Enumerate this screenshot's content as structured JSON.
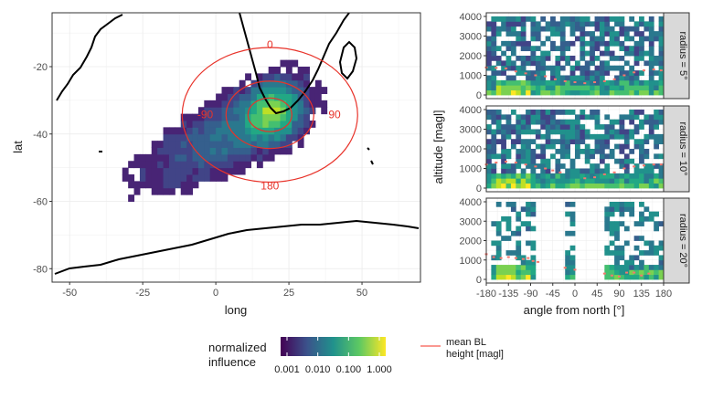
{
  "chart_data": [
    {
      "type": "heatmap",
      "panel": "map",
      "xlabel": "long",
      "ylabel": "lat",
      "xlim": [
        -56,
        70
      ],
      "ylim": [
        -84,
        -4
      ],
      "xticks": [
        -50,
        -25,
        0,
        25,
        50
      ],
      "xtick_labels": [
        "-50",
        "-25",
        "0",
        "25",
        "50"
      ],
      "yticks": [
        -20,
        -40,
        -60,
        -80
      ],
      "ytick_labels": [
        "-20",
        "-40",
        "-60",
        "-80"
      ],
      "grid": true,
      "station": {
        "lon": 18.5,
        "lat": -34.3
      },
      "rings": [
        {
          "radius_deg": 5
        },
        {
          "radius_deg": 10
        },
        {
          "radius_deg": 20
        }
      ],
      "ring_labels": [
        {
          "text": "0",
          "lon": 18.5,
          "lat": -14.3
        },
        {
          "text": "90",
          "lon": 37.5,
          "lat": -34.3
        },
        {
          "text": "180",
          "lon": 18.5,
          "lat": -54.3
        },
        {
          "text": "-90",
          "lon": -0.5,
          "lat": -34.3
        }
      ],
      "ring_color": "#e8332a",
      "plume": {
        "description_values": "normalized influence, log scale 0.001 to 1, peak near station",
        "peak": 1.0,
        "min": 0.001
      }
    },
    {
      "type": "heatmap",
      "panel": "facets",
      "xlabel": "angle from north [°]",
      "ylabel": "altitude [magl]",
      "xlim": [
        -180,
        180
      ],
      "ylim": [
        0,
        4000
      ],
      "xticks": [
        -180,
        -135,
        -90,
        -45,
        0,
        45,
        90,
        135,
        180
      ],
      "xtick_labels": [
        "-180",
        "-135",
        "-90",
        "-45",
        "0",
        "45",
        "90",
        "135",
        "180"
      ],
      "yticks": [
        0,
        1000,
        2000,
        3000,
        4000
      ],
      "ytick_labels": [
        "0",
        "1000",
        "2000",
        "3000",
        "4000"
      ],
      "facets": [
        {
          "label": "radius = 5°",
          "coverage": [
            [
              -180,
              180
            ]
          ],
          "bl_height": {
            "x": [
              -180,
              -160,
              -140,
              -120,
              -100,
              -80,
              -60,
              -40,
              -20,
              0,
              20,
              40,
              60,
              80,
              100,
              120,
              140,
              160,
              175
            ],
            "y": [
              1400,
              1380,
              1350,
              1200,
              1100,
              1000,
              950,
              800,
              700,
              650,
              600,
              650,
              700,
              800,
              1000,
              1150,
              1250,
              1300,
              1250
            ]
          }
        },
        {
          "label": "radius = 10°",
          "coverage": [
            [
              -180,
              180
            ]
          ],
          "bl_height": {
            "x": [
              -180,
              -160,
              -140,
              -120,
              -100,
              -80,
              -60,
              -45,
              -30,
              20,
              40,
              60,
              80,
              100,
              120,
              140,
              160,
              175
            ],
            "y": [
              1200,
              1300,
              1350,
              1300,
              1200,
              1100,
              1000,
              900,
              800,
              500,
              550,
              700,
              800,
              1000,
              1100,
              1150,
              1200,
              1200
            ]
          }
        },
        {
          "label": "radius = 20°",
          "coverage": [
            [
              -175,
              -85
            ],
            [
              -20,
              -5
            ],
            [
              60,
              180
            ]
          ],
          "bl_height": {
            "x": [
              -180,
              -165,
              -150,
              -135,
              -120,
              -105,
              -95,
              -85,
              -75,
              -20,
              0,
              60,
              75,
              90,
              105,
              120,
              135,
              150
            ],
            "y": [
              1300,
              1150,
              1100,
              1150,
              1100,
              1050,
              1100,
              950,
              900,
              600,
              500,
              300,
              200,
              150,
              350,
              350,
              200,
              300
            ]
          }
        }
      ],
      "bl_color": "#f8766d"
    }
  ],
  "legend": {
    "title_line1": "normalized",
    "title_line2": "influence",
    "tick_labels": [
      "0.001",
      "0.010",
      "0.100",
      "1.000"
    ],
    "colors": [
      "#440154",
      "#3b528b",
      "#21918c",
      "#5ec962",
      "#fde725"
    ],
    "line_label_line1": "mean BL",
    "line_label_line2": "height [magl]",
    "line_color": "#f8766d"
  }
}
